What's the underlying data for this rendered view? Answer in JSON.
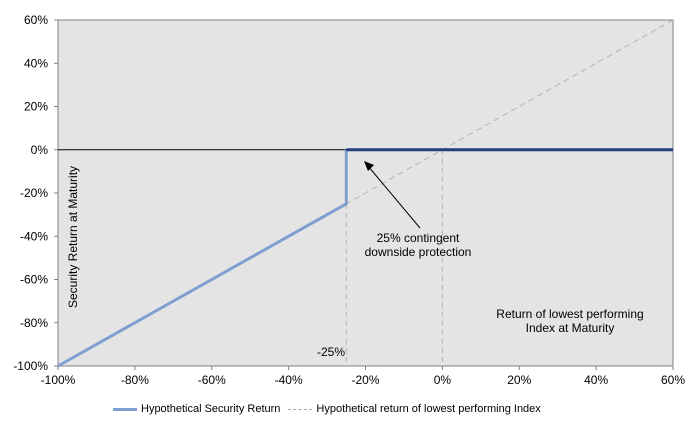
{
  "chart_data": {
    "type": "line",
    "xlabel": "Return of lowest performing Index at Maturity",
    "ylabel": "Security Return at Maturity",
    "xlim": [
      -100,
      60
    ],
    "ylim": [
      -100,
      60
    ],
    "x_ticks": [
      "-100%",
      "-80%",
      "-60%",
      "-40%",
      "-20%",
      "0%",
      "20%",
      "40%",
      "60%"
    ],
    "y_ticks": [
      "60%",
      "40%",
      "20%",
      "0%",
      "-20%",
      "-40%",
      "-60%",
      "-80%",
      "-100%"
    ],
    "x_tick_values": [
      -100,
      -80,
      -60,
      -40,
      -20,
      0,
      20,
      40,
      60
    ],
    "y_tick_values": [
      60,
      40,
      20,
      0,
      -20,
      -40,
      -60,
      -80,
      -100
    ],
    "series": [
      {
        "name": "Hypothetical Security Return",
        "style": "solid",
        "color_below": "#7f9fd0",
        "color_above": "#1f3f7f",
        "x": [
          -100,
          -25,
          -25,
          60
        ],
        "y": [
          -100,
          -25,
          0,
          0
        ]
      },
      {
        "name": "Hypothetical return of lowest performing Index",
        "style": "dashed",
        "color": "#b4b4b4",
        "x": [
          -100,
          60
        ],
        "y": [
          -100,
          60
        ]
      }
    ],
    "annotations": {
      "threshold_label": "-25%",
      "arrow_label_line1": "25% contingent",
      "arrow_label_line2": "downside protection"
    },
    "plot_background": "#e4e4e4",
    "grid": false,
    "legend_position": "bottom"
  }
}
